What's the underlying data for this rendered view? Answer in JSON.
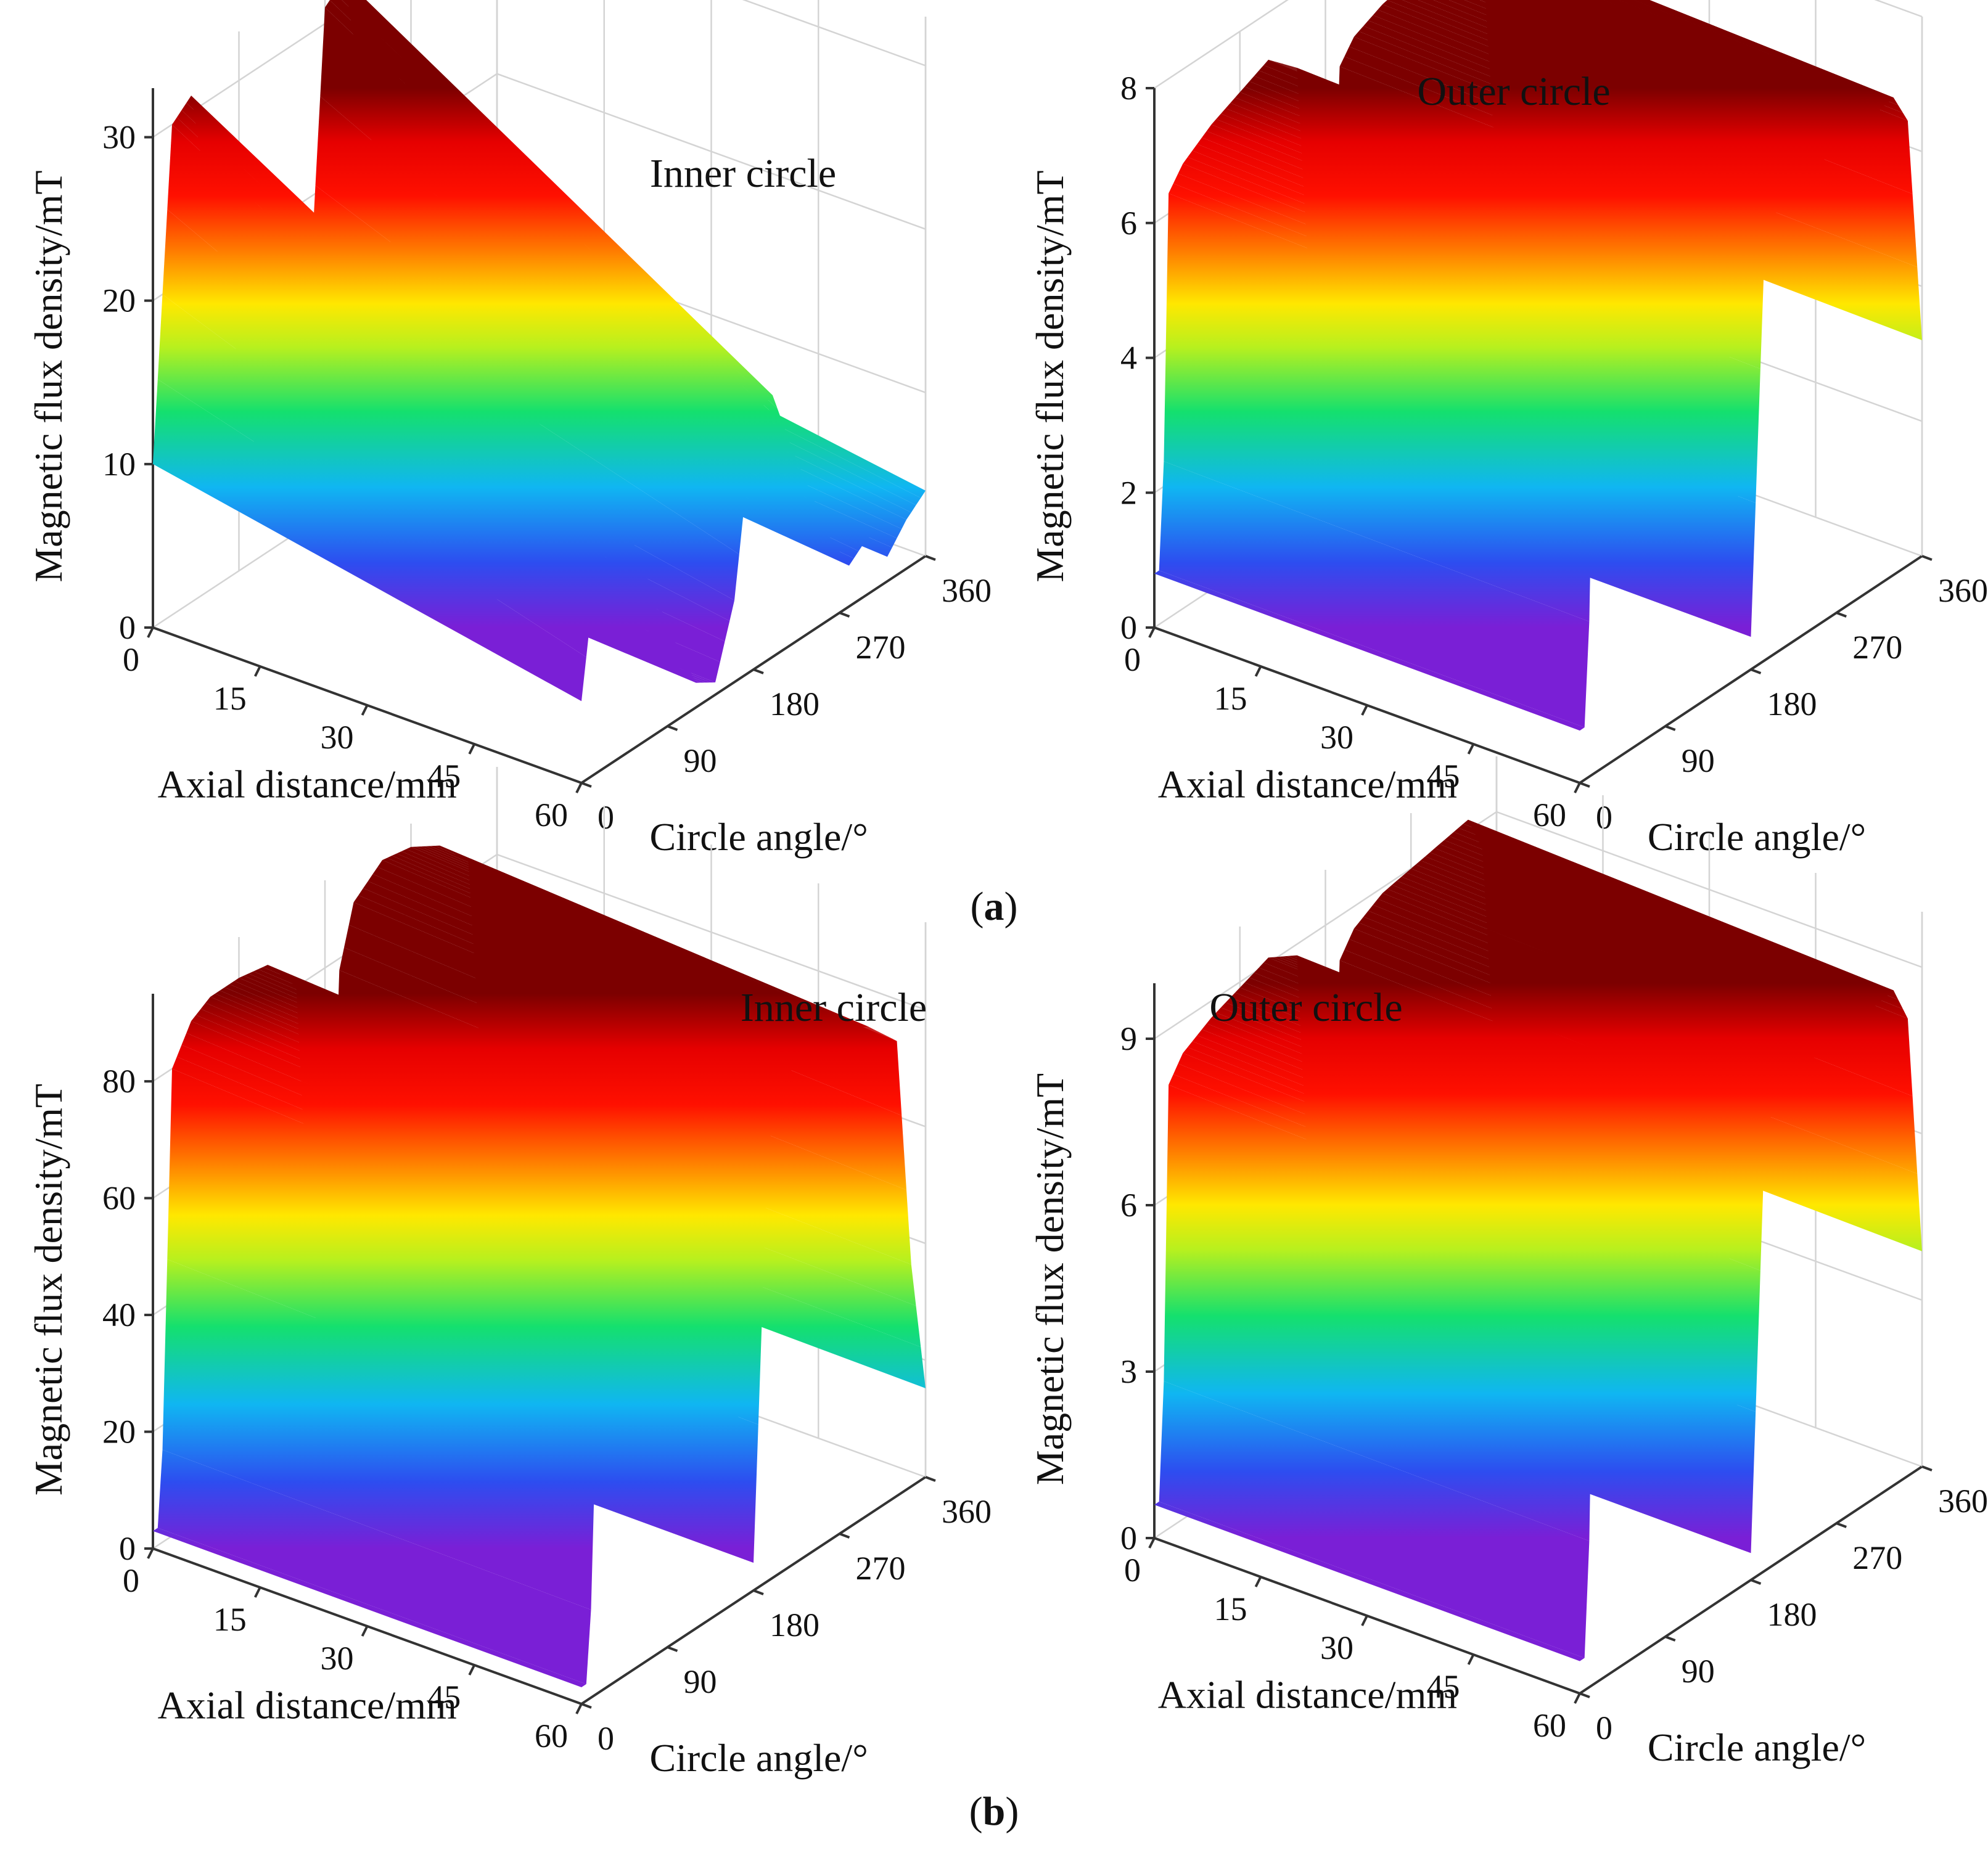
{
  "chart_data": [
    {
      "type": "surface3d",
      "panel": "a",
      "title": "Inner circle",
      "xlabel": "Axial distance/mm",
      "ylabel": "Circle angle/°",
      "zlabel": "Magnetic flux density/mT",
      "x_ticks": [
        "0",
        "15",
        "30",
        "45",
        "60"
      ],
      "y_ticks": [
        "0",
        "90",
        "180",
        "270",
        "360"
      ],
      "z_ticks": [
        "0",
        "10",
        "20",
        "30"
      ],
      "xlim": [
        0,
        60
      ],
      "ylim": [
        0,
        360
      ],
      "zlim": [
        0,
        33
      ],
      "profile_angle": [
        0,
        20,
        40,
        60,
        80,
        100,
        120,
        140,
        160,
        180,
        200,
        220,
        240,
        260,
        280,
        300,
        320,
        340,
        360
      ],
      "profile_value": [
        10,
        30,
        31,
        23,
        16,
        9,
        3,
        1.5,
        10,
        31,
        32,
        24,
        17,
        10,
        5,
        7,
        3,
        6,
        8
      ],
      "axial_scale": [
        1.0,
        0.5
      ]
    },
    {
      "type": "surface3d",
      "panel": "a",
      "title": "Outer circle",
      "xlabel": "Axial distance/mm",
      "ylabel": "Circle angle/°",
      "zlabel": "Magnetic flux density/mT",
      "x_ticks": [
        "0",
        "15",
        "30",
        "45",
        "60"
      ],
      "y_ticks": [
        "0",
        "90",
        "180",
        "270",
        "360"
      ],
      "z_ticks": [
        "0",
        "2",
        "4",
        "6",
        "8"
      ],
      "xlim": [
        0,
        60
      ],
      "ylim": [
        0,
        360
      ],
      "zlim": [
        0,
        8
      ],
      "profile_angle": [
        0,
        8,
        15,
        30,
        60,
        90,
        120,
        150,
        165,
        180,
        195,
        210,
        240,
        270,
        300,
        330,
        345,
        360
      ],
      "profile_value": [
        0.8,
        0.8,
        6.3,
        6.6,
        6.9,
        7.1,
        7.3,
        6.9,
        3.0,
        0.5,
        6.5,
        6.8,
        7.0,
        7.1,
        7.2,
        7.3,
        6.8,
        3.3
      ],
      "axial_scale": [
        1.0,
        0.97
      ]
    },
    {
      "type": "surface3d",
      "panel": "b",
      "title": "Inner circle",
      "xlabel": "Axial distance/mm",
      "ylabel": "Circle angle/°",
      "zlabel": "Magnetic flux density/mT",
      "x_ticks": [
        "0",
        "15",
        "30",
        "45",
        "60"
      ],
      "y_ticks": [
        "0",
        "90",
        "180",
        "270",
        "360"
      ],
      "z_ticks": [
        "0",
        "20",
        "40",
        "60",
        "80"
      ],
      "xlim": [
        0,
        60
      ],
      "ylim": [
        0,
        360
      ],
      "zlim": [
        0,
        95
      ],
      "profile_angle": [
        0,
        8,
        20,
        40,
        60,
        90,
        120,
        150,
        165,
        180,
        195,
        210,
        240,
        270,
        300,
        330,
        345,
        360
      ],
      "profile_value": [
        3,
        3,
        80,
        86,
        88,
        88,
        87,
        80,
        30,
        5,
        78,
        88,
        92,
        91,
        88,
        82,
        40,
        16
      ],
      "axial_scale": [
        1.0,
        0.95
      ]
    },
    {
      "type": "surface3d",
      "panel": "b",
      "title": "Outer circle",
      "xlabel": "Axial distance/mm",
      "ylabel": "Circle angle/°",
      "zlabel": "Magnetic flux density/mT",
      "x_ticks": [
        "0",
        "15",
        "30",
        "45",
        "60"
      ],
      "y_ticks": [
        "0",
        "90",
        "180",
        "270",
        "360"
      ],
      "z_ticks": [
        "0",
        "3",
        "6",
        "9"
      ],
      "xlim": [
        0,
        60
      ],
      "ylim": [
        0,
        360
      ],
      "zlim": [
        0,
        10
      ],
      "profile_angle": [
        0,
        8,
        15,
        30,
        60,
        90,
        120,
        150,
        165,
        180,
        195,
        210,
        240,
        270,
        300,
        330,
        345,
        360
      ],
      "profile_value": [
        0.6,
        0.6,
        8.0,
        8.4,
        8.7,
        8.9,
        9.1,
        8.8,
        3.5,
        0.5,
        8.2,
        8.6,
        8.9,
        9.0,
        9.1,
        9.2,
        8.5,
        4.0
      ],
      "axial_scale": [
        1.0,
        0.97
      ]
    }
  ],
  "captions": {
    "a": "a",
    "b": "b"
  }
}
